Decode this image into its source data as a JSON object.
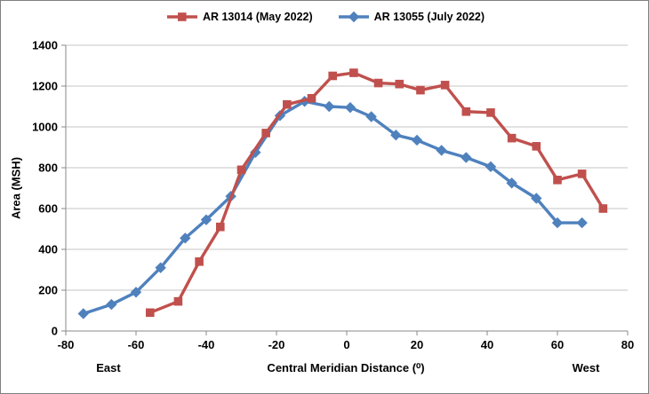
{
  "window": {
    "background": "#ffffff",
    "border_color": "#808080"
  },
  "chart_data": {
    "type": "line",
    "title": "",
    "xlabel": "Central Meridian Distance (⁰)",
    "xlabel_left": "East",
    "xlabel_right": "West",
    "ylabel": "Area (MSH)",
    "xlim": [
      -80,
      80
    ],
    "ylim": [
      0,
      1400
    ],
    "x_ticks": [
      -80,
      -60,
      -40,
      -20,
      0,
      20,
      40,
      60,
      80
    ],
    "y_ticks": [
      0,
      200,
      400,
      600,
      800,
      1000,
      1200,
      1400
    ],
    "grid": "horizontal",
    "legend_position": "top-center",
    "series": [
      {
        "name": "AR 13014 (May 2022)",
        "color": "#C0504D",
        "marker": "square",
        "points": [
          [
            -56,
            90
          ],
          [
            -48,
            145
          ],
          [
            -42,
            340
          ],
          [
            -36,
            510
          ],
          [
            -30,
            790
          ],
          [
            -23,
            970
          ],
          [
            -17,
            1110
          ],
          [
            -10,
            1140
          ],
          [
            -4,
            1250
          ],
          [
            2,
            1265
          ],
          [
            9,
            1215
          ],
          [
            15,
            1210
          ],
          [
            21,
            1180
          ],
          [
            28,
            1205
          ],
          [
            34,
            1075
          ],
          [
            41,
            1070
          ],
          [
            47,
            945
          ],
          [
            54,
            905
          ],
          [
            60,
            740
          ],
          [
            67,
            770
          ],
          [
            73,
            600
          ]
        ]
      },
      {
        "name": "AR 13055 (July 2022)",
        "color": "#4F81BD",
        "marker": "diamond",
        "points": [
          [
            -75,
            85
          ],
          [
            -67,
            130
          ],
          [
            -60,
            190
          ],
          [
            -53,
            310
          ],
          [
            -46,
            455
          ],
          [
            -40,
            545
          ],
          [
            -33,
            660
          ],
          [
            -26,
            875
          ],
          [
            -19,
            1055
          ],
          [
            -12,
            1125
          ],
          [
            -5,
            1100
          ],
          [
            1,
            1095
          ],
          [
            7,
            1050
          ],
          [
            14,
            960
          ],
          [
            20,
            935
          ],
          [
            27,
            885
          ],
          [
            34,
            850
          ],
          [
            41,
            805
          ],
          [
            47,
            725
          ],
          [
            54,
            650
          ],
          [
            60,
            530
          ],
          [
            67,
            530
          ]
        ]
      }
    ],
    "colors": {
      "grid": "#C6C6C6",
      "axis": "#898989",
      "text": "#000000"
    }
  }
}
